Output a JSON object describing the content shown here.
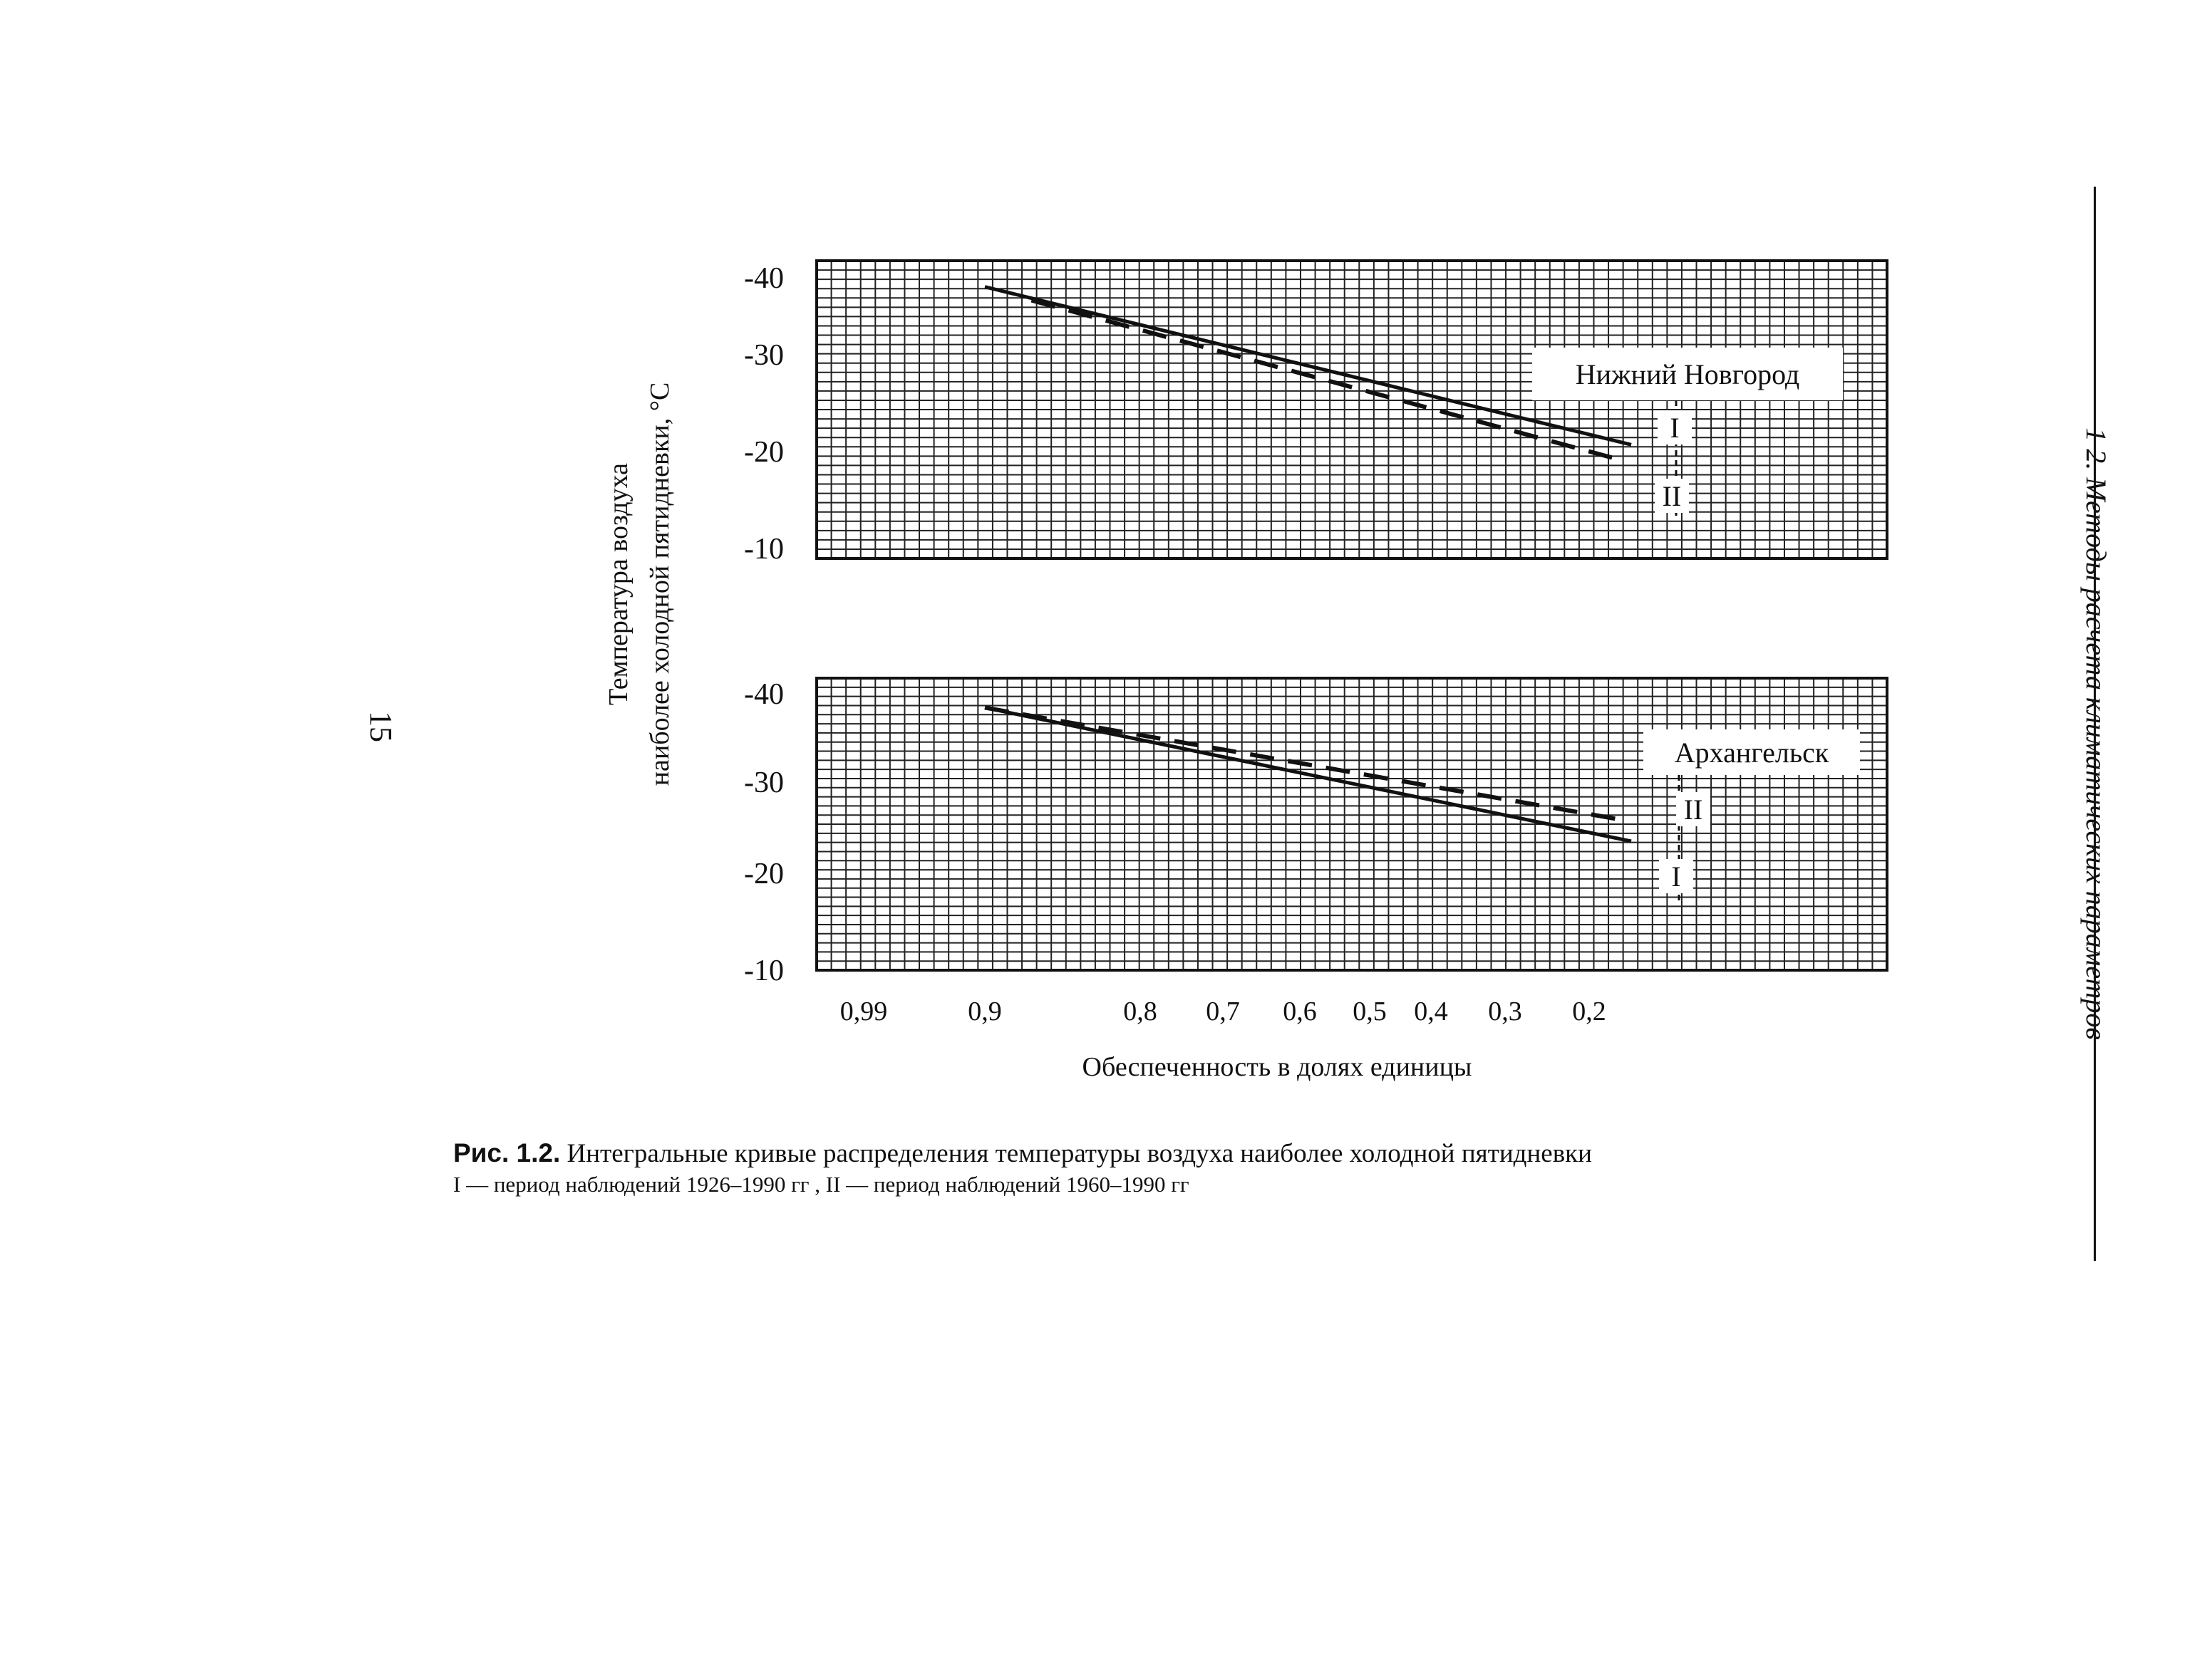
{
  "page_number": "15",
  "running_head": "1 2. Методы расчета климатических параметров",
  "y_axis_title_line1": "Температура воздуха",
  "y_axis_title_line2": "наиболее холодной пятидневки, °С",
  "x_axis_title": "Обеспеченность в долях единицы",
  "caption": {
    "label": "Рис. 1.2.",
    "text": " Интегральные кривые распределения температуры воздуха наиболее холодной пятидневки",
    "line2": "I — период наблюдений 1926–1990 гг , II — период наблюдений 1960–1990 гг"
  },
  "colors": {
    "ink": "#111111",
    "grid": "#222222",
    "paper": "#ffffff"
  },
  "chart_data": [
    {
      "type": "line",
      "title": "Нижний Новгород",
      "y_ticks": [
        "-40",
        "-30",
        "-20",
        "-10"
      ],
      "x_ticks": [
        "0,99",
        "0,9",
        "0,8",
        "0,7",
        "0,6",
        "0,5",
        "0,4",
        "0,3",
        "0,2"
      ],
      "ylim": [
        -10,
        -42
      ],
      "grid": true,
      "series": [
        {
          "name": "I",
          "style": "solid",
          "x": [
            0.9,
            0.15
          ],
          "y": [
            -39.0,
            -21.5
          ]
        },
        {
          "name": "II",
          "style": "dashed",
          "x": [
            0.87,
            0.17
          ],
          "y": [
            -37.5,
            -20.0
          ]
        }
      ]
    },
    {
      "type": "line",
      "title": "Архангельск",
      "y_ticks": [
        "-40",
        "-30",
        "-20",
        "-10"
      ],
      "x_ticks": [
        "0,99",
        "0,9",
        "0,8",
        "0,7",
        "0,6",
        "0,5",
        "0,4",
        "0,3",
        "0,2"
      ],
      "ylim": [
        -10,
        -42
      ],
      "grid": true,
      "series": [
        {
          "name": "I",
          "style": "solid",
          "x": [
            0.9,
            0.15
          ],
          "y": [
            -38.5,
            -24.0
          ]
        },
        {
          "name": "II",
          "style": "dashed",
          "x": [
            0.9,
            0.16
          ],
          "y": [
            -38.5,
            -26.3
          ]
        }
      ]
    }
  ]
}
